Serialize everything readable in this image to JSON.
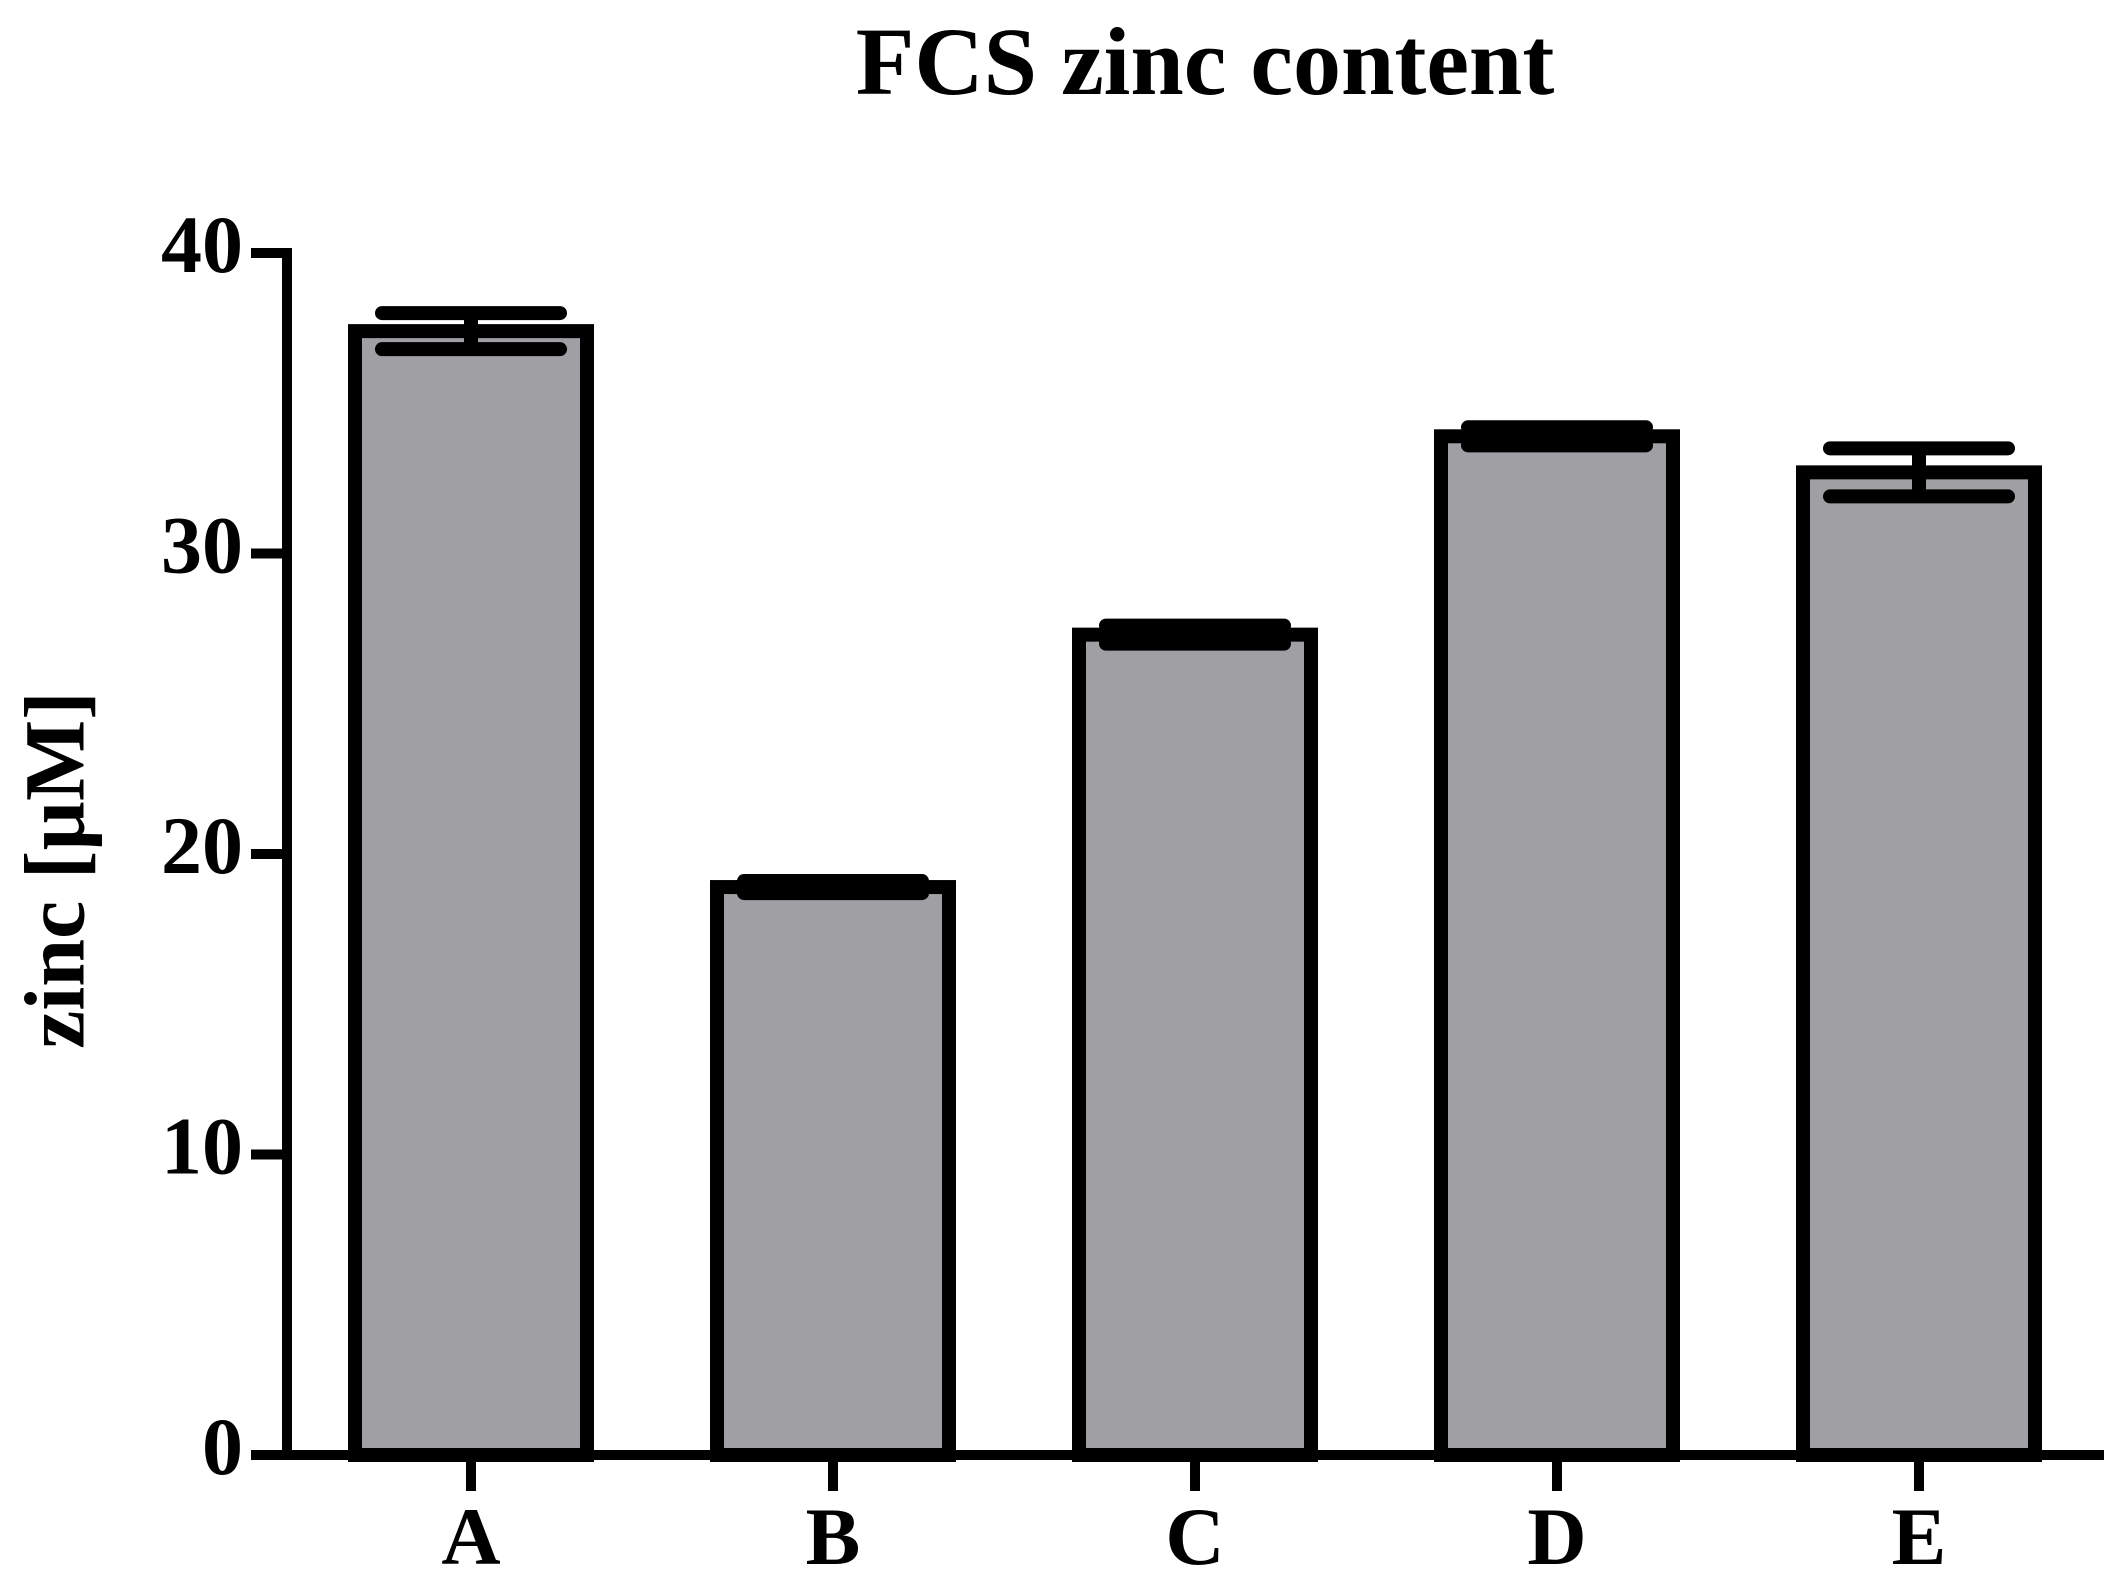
{
  "chart_data": {
    "type": "bar",
    "title": "FCS zinc content",
    "y_label": "zinc [µM]",
    "categories": [
      "A",
      "B",
      "C",
      "D",
      "E"
    ],
    "values": [
      37.4,
      18.9,
      27.3,
      33.9,
      32.7
    ],
    "errors": [
      0.6,
      0.2,
      0.3,
      0.3,
      0.8
    ],
    "color": "#a09fa4",
    "ylim": [
      0,
      40
    ],
    "yticks": [
      0,
      10,
      20,
      30,
      40
    ],
    "grid": false
  }
}
